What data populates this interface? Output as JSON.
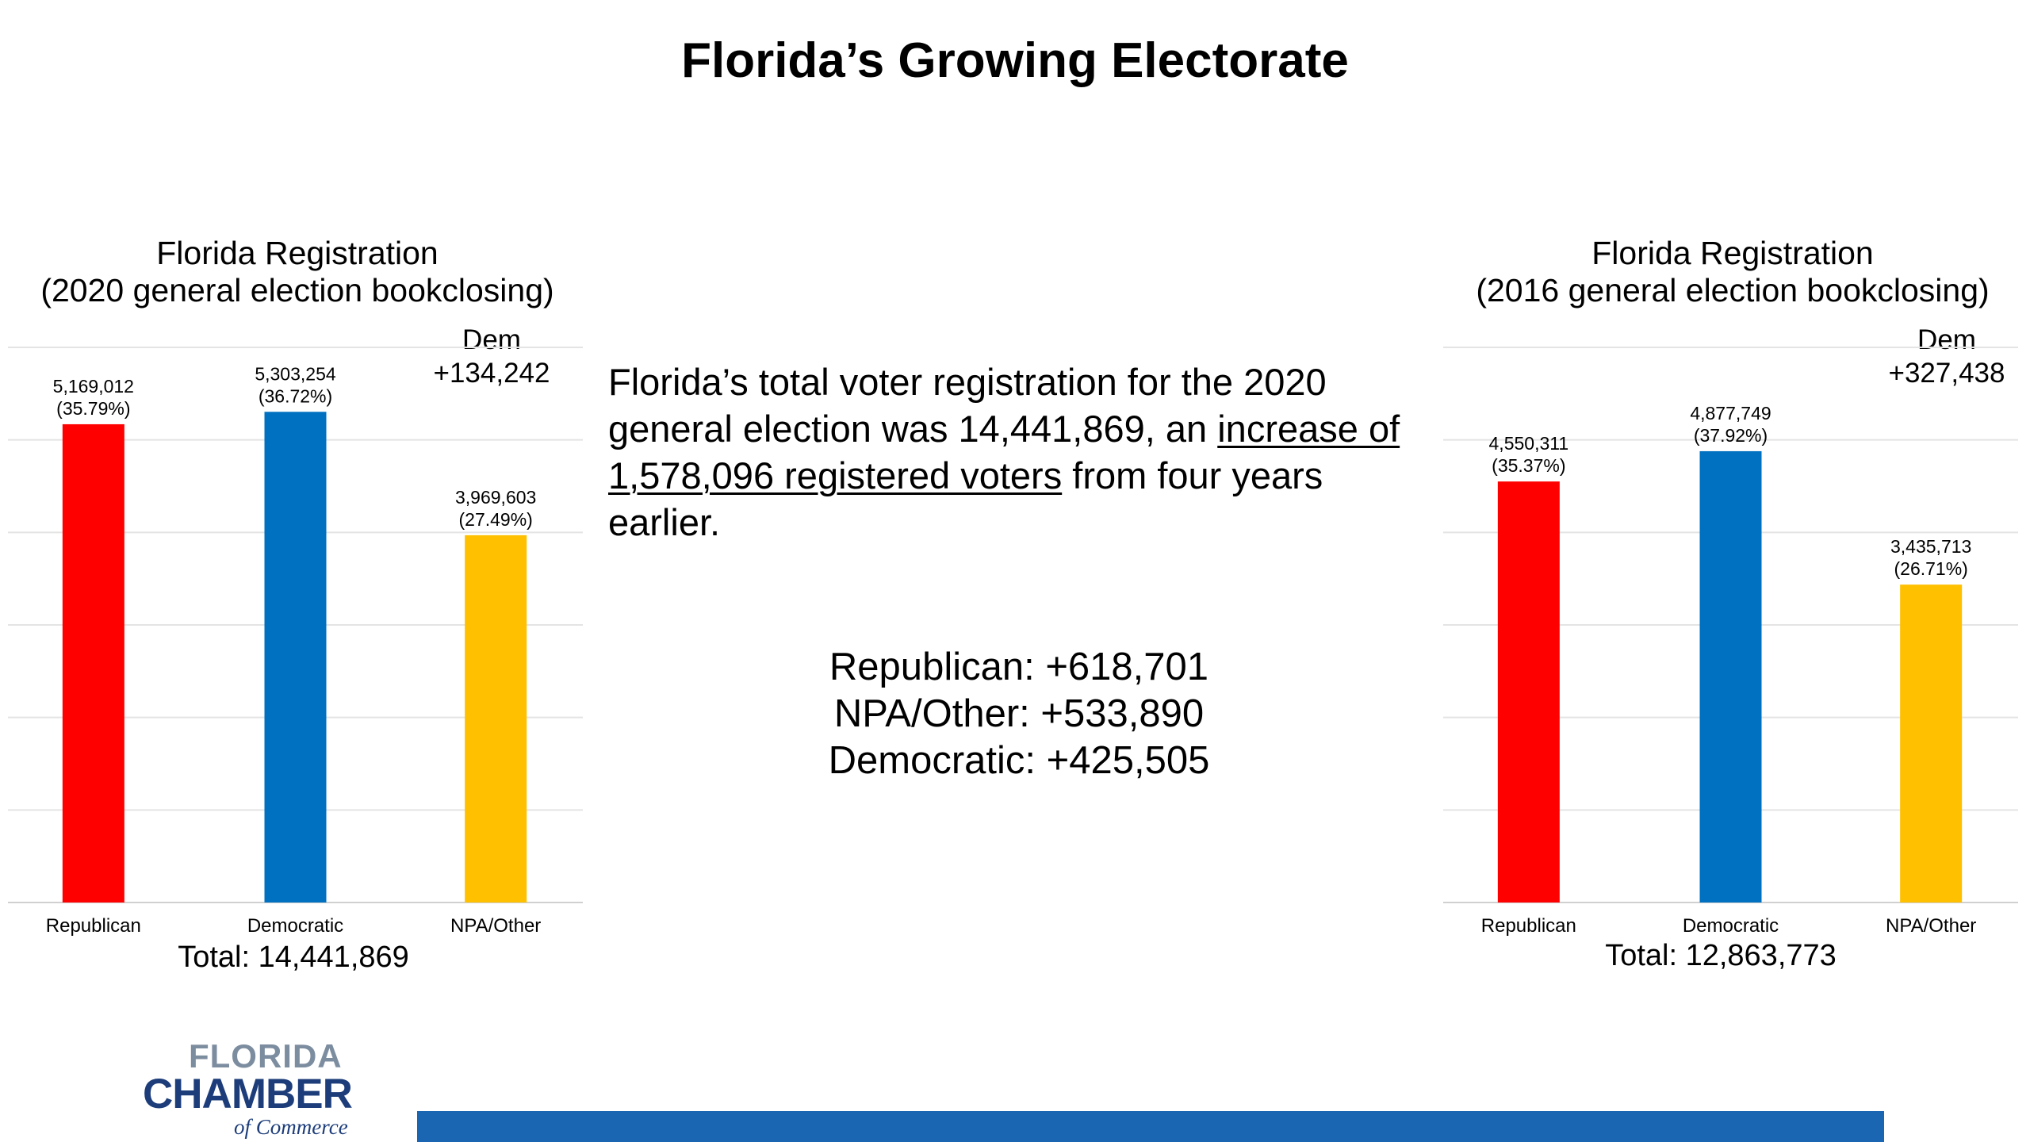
{
  "slide": {
    "title": "Florida’s Growing Electorate"
  },
  "chart_data": [
    {
      "type": "bar",
      "title_line1": "Florida Registration",
      "title_line2": "(2020 general election bookclosing)",
      "categories": [
        "Republican",
        "Democratic",
        "NPA/Other"
      ],
      "values": [
        5169012,
        5303254,
        3969603
      ],
      "data_labels": [
        "5,169,012",
        "5,303,254",
        "3,969,603"
      ],
      "percent_labels": [
        "(35.79%)",
        "(36.72%)",
        "(27.49%)"
      ],
      "colors": [
        "#ff0000",
        "#0070c0",
        "#ffc000"
      ],
      "ylim": [
        0,
        6000000
      ],
      "grid": true,
      "note_line1": "Dem",
      "note_line2": "+134,242",
      "total": "Total: 14,441,869"
    },
    {
      "type": "bar",
      "title_line1": "Florida Registration",
      "title_line2": "(2016 general election bookclosing)",
      "categories": [
        "Republican",
        "Democratic",
        "NPA/Other"
      ],
      "values": [
        4550311,
        4877749,
        3435713
      ],
      "data_labels": [
        "4,550,311",
        "4,877,749",
        "3,435,713"
      ],
      "percent_labels": [
        "(35.37%)",
        "(37.92%)",
        "(26.71%)"
      ],
      "colors": [
        "#ff0000",
        "#0070c0",
        "#ffc000"
      ],
      "ylim": [
        0,
        6000000
      ],
      "grid": true,
      "note_line1": "Dem",
      "note_line2": "+327,438",
      "total": "Total: 12,863,773"
    }
  ],
  "summary": {
    "part1": "Florida’s total voter registration for the 2020 general election was 14,441,869, an ",
    "underlined": "increase of 1,578,096 registered voters",
    "part2": " from four years earlier."
  },
  "changes": [
    "Republican: +618,701",
    "NPA/Other: +533,890",
    "Democratic: +425,505"
  ],
  "logo": {
    "line1": "FLORIDA",
    "line2": "CHAMBER",
    "line3": "of Commerce"
  },
  "colors": {
    "republican": "#ff0000",
    "democratic": "#0070c0",
    "npa_other": "#ffc000",
    "footer_bar": "#1a66b3",
    "logo_navy": "#1d3d7a"
  }
}
